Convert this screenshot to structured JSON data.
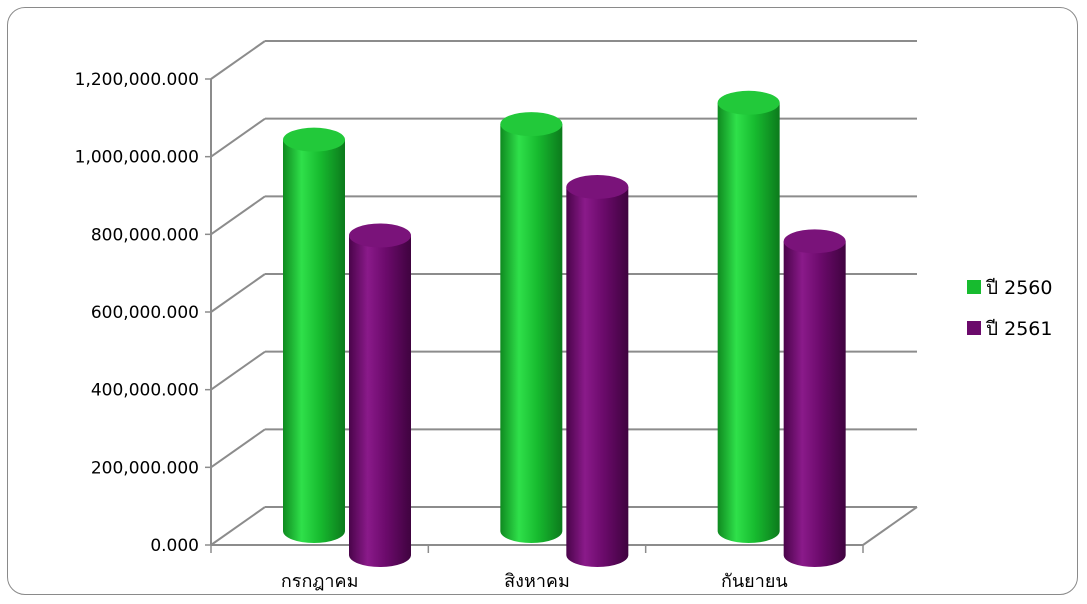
{
  "chart_data": {
    "type": "bar",
    "style": "3d-cylinder",
    "title": "",
    "xlabel": "",
    "ylabel": "",
    "categories": [
      "กรกฎาคม",
      "สิงหาคม",
      "กันยายน"
    ],
    "series": [
      {
        "name": "ปี 2560",
        "values": [
          1000000,
          1040000,
          1095000
        ],
        "color": "#17bb2f"
      },
      {
        "name": "ปี 2561",
        "values": [
          815000,
          940000,
          800000
        ],
        "color": "#6b0a6b"
      }
    ],
    "ylim": [
      0,
      1200000
    ],
    "yticks": [
      "0.000",
      "200,000.000",
      "400,000.000",
      "600,000.000",
      "800,000.000",
      "1,000,000.000",
      "1,200,000.000"
    ],
    "grid": true,
    "legend": "right"
  }
}
